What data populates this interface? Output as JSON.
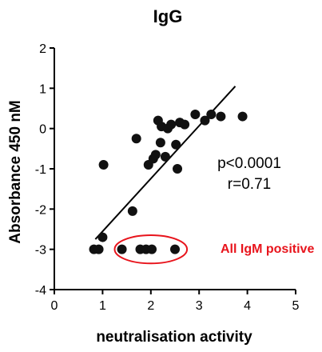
{
  "chart_data": {
    "type": "scatter",
    "title": "IgG",
    "xlabel": "neutralisation activity",
    "ylabel": "Absorbance 450 nM",
    "xlim": [
      0,
      5
    ],
    "ylim": [
      -4,
      2
    ],
    "xticks": [
      "0",
      "1",
      "2",
      "3",
      "4",
      "5"
    ],
    "yticks": [
      "2",
      "1",
      "0",
      "-1",
      "-2",
      "-3",
      "-4"
    ],
    "grid": false,
    "points": [
      {
        "x": 0.82,
        "y": -3.0
      },
      {
        "x": 0.92,
        "y": -3.0
      },
      {
        "x": 1.0,
        "y": -2.7
      },
      {
        "x": 1.02,
        "y": -0.9
      },
      {
        "x": 1.4,
        "y": -3.0
      },
      {
        "x": 1.62,
        "y": -2.05
      },
      {
        "x": 1.7,
        "y": -0.25
      },
      {
        "x": 1.78,
        "y": -3.0
      },
      {
        "x": 1.9,
        "y": -3.0
      },
      {
        "x": 1.95,
        "y": -0.9
      },
      {
        "x": 2.02,
        "y": -3.0
      },
      {
        "x": 2.05,
        "y": -0.75
      },
      {
        "x": 2.1,
        "y": -0.65
      },
      {
        "x": 2.15,
        "y": 0.2
      },
      {
        "x": 2.2,
        "y": -0.35
      },
      {
        "x": 2.22,
        "y": 0.05
      },
      {
        "x": 2.3,
        "y": -0.7
      },
      {
        "x": 2.35,
        "y": 0.0
      },
      {
        "x": 2.42,
        "y": 0.1
      },
      {
        "x": 2.5,
        "y": -3.0
      },
      {
        "x": 2.52,
        "y": -0.4
      },
      {
        "x": 2.55,
        "y": -1.0
      },
      {
        "x": 2.6,
        "y": 0.15
      },
      {
        "x": 2.7,
        "y": 0.1
      },
      {
        "x": 2.92,
        "y": 0.35
      },
      {
        "x": 3.12,
        "y": 0.2
      },
      {
        "x": 3.25,
        "y": 0.35
      },
      {
        "x": 3.45,
        "y": 0.3
      },
      {
        "x": 3.9,
        "y": 0.3
      }
    ],
    "regression_line": {
      "x": [
        0.85,
        3.75
      ],
      "y": [
        -2.75,
        1.05
      ]
    },
    "stats": {
      "p": "p<0.0001",
      "r": "r=0.71"
    },
    "annotation": {
      "text": "All IgM positive",
      "color": "#e8141c",
      "ellipse_center": [
        2.0,
        -3.0
      ],
      "ellipse_radius": [
        0.75,
        0.35
      ]
    }
  }
}
